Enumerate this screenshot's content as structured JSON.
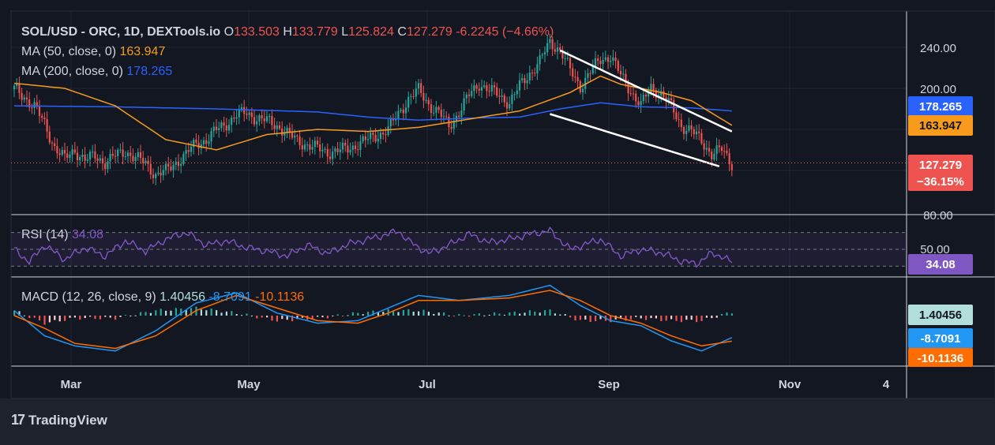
{
  "legend": {
    "symbol": "SOL/USD - ORC, 1D, DEXTools.io",
    "ohlc": [
      {
        "label": "O",
        "value": "133.503"
      },
      {
        "label": "H",
        "value": "133.779"
      },
      {
        "label": "L",
        "value": "125.824"
      },
      {
        "label": "C",
        "value": "127.279"
      }
    ],
    "change": "-6.2245 (−4.66%)",
    "ma50": {
      "label": "MA (50, close, 0)",
      "value": "163.947"
    },
    "ma200": {
      "label": "MA (200, close, 0)",
      "value": "178.265"
    },
    "rsi": {
      "label": "RSI (14)",
      "value": "34.08"
    },
    "macd": {
      "label": "MACD (12, 26, close, 9)",
      "values": [
        "1.40456",
        "-8.7091",
        "-10.1136"
      ]
    }
  },
  "badges": {
    "ma200": "178.265",
    "ma50": "163.947",
    "price": "127.279",
    "price_change": "−36.15%",
    "rsi": "34.08",
    "hist": "1.40456",
    "macd": "-8.7091",
    "signal": "-10.1136"
  },
  "watermark": "TradingView",
  "colors": {
    "background": "#131722",
    "up": "#26a69a",
    "down": "#ef5350",
    "ma50": "#f89b1c",
    "ma200": "#2962ff",
    "rsi": "#7e57c2",
    "macd": "#2196f3",
    "signal": "#ff6d00",
    "hist_light": "#b2dfdb",
    "hist_pink": "#ffcdd2"
  },
  "chart_data": {
    "type": "candlestick",
    "timeframe": "1D",
    "x_tick_labels": [
      "Mar",
      "May",
      "Jul",
      "Sep",
      "Nov",
      "4"
    ],
    "price_axis_labels": [
      "240.00",
      "200.00",
      "80.00"
    ],
    "rsi_axis_labels": [
      "50.00"
    ],
    "ylim": [
      80,
      255
    ],
    "series": [
      {
        "name": "SOL/USD",
        "type": "candlestick",
        "close_points": [
          [
            0,
            199
          ],
          [
            4,
            192
          ],
          [
            8,
            182
          ],
          [
            12,
            165
          ],
          [
            16,
            143
          ],
          [
            20,
            131
          ],
          [
            24,
            140
          ],
          [
            28,
            130
          ],
          [
            32,
            134
          ],
          [
            36,
            128
          ],
          [
            40,
            134
          ],
          [
            44,
            139
          ],
          [
            48,
            132
          ],
          [
            52,
            127
          ],
          [
            56,
            116
          ],
          [
            60,
            119
          ],
          [
            64,
            128
          ],
          [
            68,
            136
          ],
          [
            72,
            146
          ],
          [
            76,
            150
          ],
          [
            80,
            159
          ],
          [
            84,
            166
          ],
          [
            88,
            174
          ],
          [
            92,
            176
          ],
          [
            96,
            171
          ],
          [
            100,
            168
          ],
          [
            104,
            164
          ],
          [
            108,
            156
          ],
          [
            112,
            149
          ],
          [
            116,
            145
          ],
          [
            120,
            141
          ],
          [
            124,
            138
          ],
          [
            128,
            139
          ],
          [
            132,
            141
          ],
          [
            136,
            146
          ],
          [
            140,
            150
          ],
          [
            144,
            155
          ],
          [
            148,
            160
          ],
          [
            152,
            175
          ],
          [
            156,
            190
          ],
          [
            160,
            198
          ],
          [
            164,
            185
          ],
          [
            168,
            176
          ],
          [
            172,
            163
          ],
          [
            176,
            177
          ],
          [
            180,
            193
          ],
          [
            184,
            205
          ],
          [
            188,
            198
          ],
          [
            192,
            193
          ],
          [
            196,
            186
          ],
          [
            200,
            202
          ],
          [
            204,
            215
          ],
          [
            208,
            226
          ],
          [
            212,
            245
          ],
          [
            216,
            238
          ],
          [
            220,
            217
          ],
          [
            224,
            202
          ],
          [
            228,
            216
          ],
          [
            232,
            228
          ],
          [
            236,
            232
          ],
          [
            240,
            212
          ],
          [
            244,
            198
          ],
          [
            248,
            183
          ],
          [
            252,
            201
          ],
          [
            256,
            195
          ],
          [
            260,
            182
          ],
          [
            264,
            164
          ],
          [
            268,
            158
          ],
          [
            272,
            149
          ],
          [
            276,
            136
          ],
          [
            280,
            140
          ],
          [
            284,
            127
          ]
        ]
      },
      {
        "name": "MA (50, close, 0)",
        "values": [
          [
            0,
            205
          ],
          [
            20,
            200
          ],
          [
            40,
            183
          ],
          [
            60,
            150
          ],
          [
            80,
            140
          ],
          [
            100,
            155
          ],
          [
            120,
            160
          ],
          [
            140,
            158
          ],
          [
            160,
            162
          ],
          [
            180,
            170
          ],
          [
            200,
            178
          ],
          [
            220,
            196
          ],
          [
            232,
            212
          ],
          [
            240,
            204
          ],
          [
            256,
            196
          ],
          [
            268,
            188
          ],
          [
            276,
            176
          ],
          [
            284,
            164
          ]
        ]
      },
      {
        "name": "MA (200, close, 0)",
        "values": [
          [
            0,
            183
          ],
          [
            40,
            182
          ],
          [
            80,
            180
          ],
          [
            120,
            177
          ],
          [
            140,
            172
          ],
          [
            160,
            169
          ],
          [
            180,
            171
          ],
          [
            200,
            172
          ],
          [
            216,
            180
          ],
          [
            232,
            186
          ],
          [
            248,
            182
          ],
          [
            268,
            181
          ],
          [
            284,
            178
          ]
        ]
      },
      {
        "name": "RSI (14)",
        "range": [
          0,
          100
        ],
        "values": [
          [
            0,
            50
          ],
          [
            6,
            35
          ],
          [
            12,
            55
          ],
          [
            20,
            38
          ],
          [
            28,
            52
          ],
          [
            36,
            42
          ],
          [
            44,
            60
          ],
          [
            52,
            48
          ],
          [
            60,
            62
          ],
          [
            68,
            70
          ],
          [
            76,
            55
          ],
          [
            84,
            60
          ],
          [
            92,
            52
          ],
          [
            100,
            48
          ],
          [
            108,
            42
          ],
          [
            116,
            55
          ],
          [
            124,
            45
          ],
          [
            132,
            56
          ],
          [
            140,
            62
          ],
          [
            148,
            68
          ],
          [
            152,
            72
          ],
          [
            156,
            60
          ],
          [
            164,
            45
          ],
          [
            172,
            55
          ],
          [
            180,
            68
          ],
          [
            188,
            58
          ],
          [
            196,
            62
          ],
          [
            204,
            68
          ],
          [
            212,
            72
          ],
          [
            220,
            50
          ],
          [
            228,
            58
          ],
          [
            232,
            62
          ],
          [
            240,
            42
          ],
          [
            248,
            50
          ],
          [
            256,
            46
          ],
          [
            264,
            36
          ],
          [
            270,
            33
          ],
          [
            276,
            45
          ],
          [
            280,
            42
          ],
          [
            284,
            34.08
          ]
        ]
      },
      {
        "name": "MACD",
        "values": [
          [
            0,
            2
          ],
          [
            12,
            -8
          ],
          [
            24,
            -12
          ],
          [
            40,
            -14
          ],
          [
            56,
            -6
          ],
          [
            72,
            5
          ],
          [
            88,
            9
          ],
          [
            104,
            1
          ],
          [
            120,
            -3
          ],
          [
            136,
            -2
          ],
          [
            148,
            3
          ],
          [
            160,
            8
          ],
          [
            176,
            6
          ],
          [
            196,
            8
          ],
          [
            212,
            12
          ],
          [
            224,
            4
          ],
          [
            236,
            -2
          ],
          [
            248,
            -4
          ],
          [
            260,
            -10
          ],
          [
            272,
            -14
          ],
          [
            284,
            -8.7091
          ]
        ]
      },
      {
        "name": "Signal",
        "values": [
          [
            0,
            0
          ],
          [
            12,
            -5
          ],
          [
            24,
            -11
          ],
          [
            40,
            -13
          ],
          [
            56,
            -8
          ],
          [
            72,
            2
          ],
          [
            88,
            8
          ],
          [
            104,
            3
          ],
          [
            120,
            -2
          ],
          [
            136,
            -3
          ],
          [
            148,
            1
          ],
          [
            160,
            6
          ],
          [
            176,
            6
          ],
          [
            196,
            7
          ],
          [
            212,
            10
          ],
          [
            224,
            6
          ],
          [
            236,
            0
          ],
          [
            248,
            -3
          ],
          [
            260,
            -8
          ],
          [
            272,
            -12
          ],
          [
            284,
            -10.1136
          ]
        ]
      }
    ],
    "annotations": [
      {
        "type": "trendline",
        "color": "#ffffff",
        "points": [
          [
            216,
            237
          ],
          [
            284,
            158
          ]
        ]
      },
      {
        "type": "trendline",
        "color": "#ffffff",
        "points": [
          [
            212,
            175
          ],
          [
            279,
            124
          ]
        ]
      }
    ]
  }
}
